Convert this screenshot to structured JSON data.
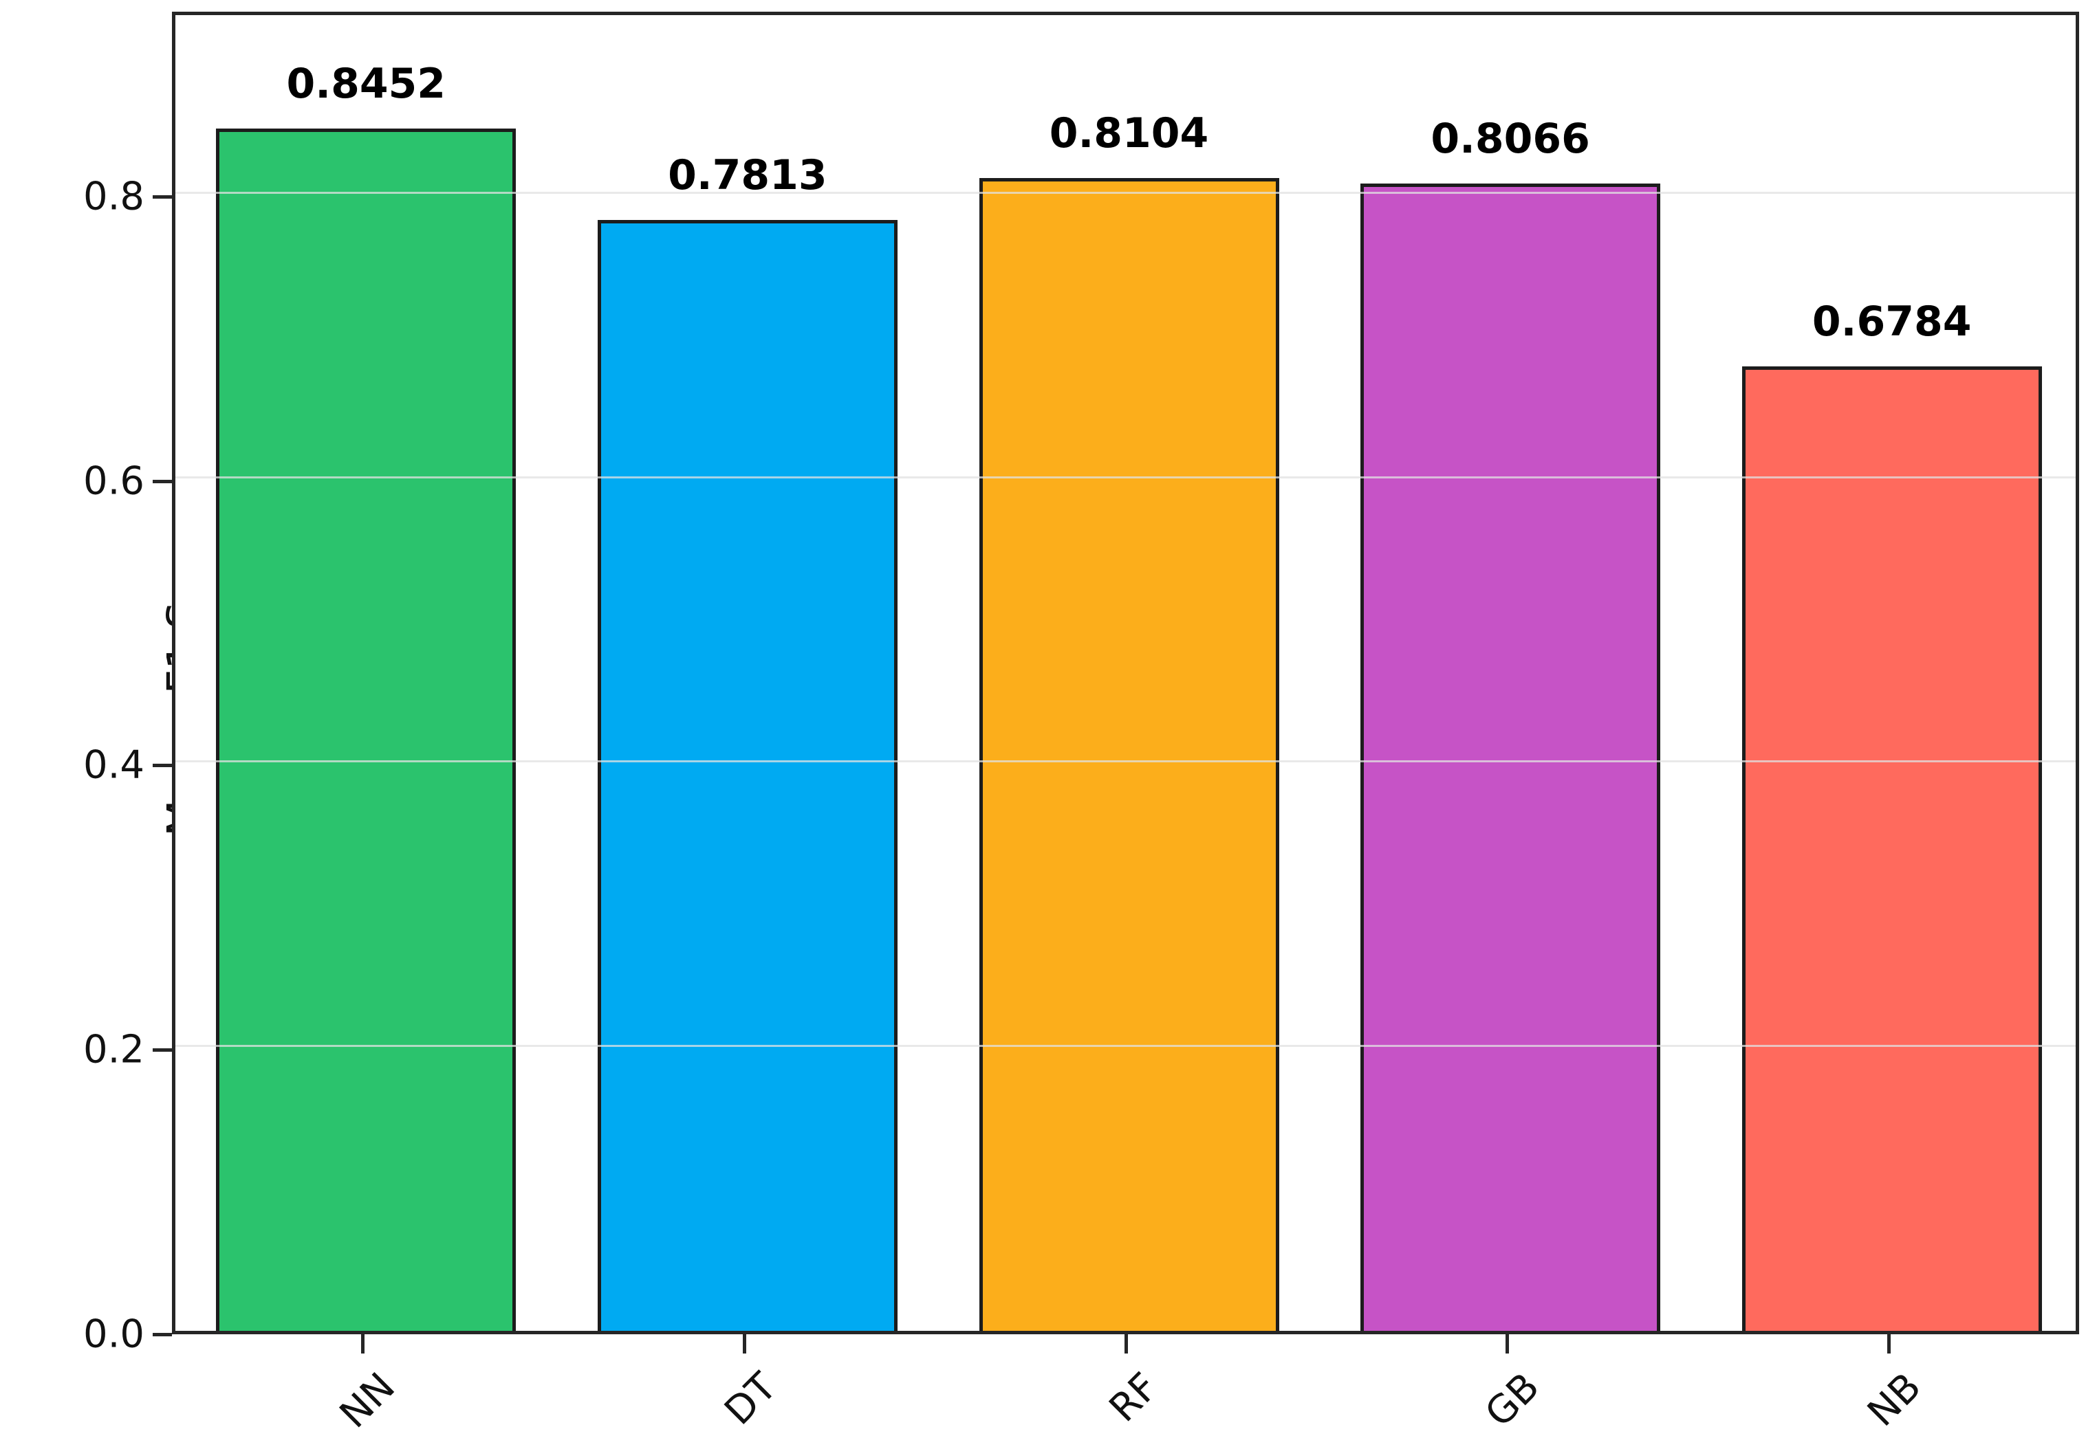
{
  "chart_data": {
    "type": "bar",
    "title": "",
    "xlabel": "",
    "ylabel": "Macro F1 Score",
    "categories": [
      "NN",
      "DT",
      "RF",
      "GB",
      "NB"
    ],
    "values": [
      0.8452,
      0.7813,
      0.8104,
      0.8066,
      0.6784
    ],
    "value_labels": [
      "0.8452",
      "0.7813",
      "0.8104",
      "0.8066",
      "0.6784"
    ],
    "bar_colors": [
      "#2bc36d",
      "#00aaf2",
      "#fcae1b",
      "#c653c6",
      "#ff6a5d"
    ],
    "bar_edge_color": "#1c1c1c",
    "ylim": [
      0,
      0.93
    ],
    "yticks": [
      0.0,
      0.2,
      0.4,
      0.6,
      0.8
    ],
    "ytick_labels": [
      "0.0",
      "0.2",
      "0.4",
      "0.6",
      "0.8"
    ],
    "grid": "horizontal",
    "grid_color": "#e1e1e1",
    "xtick_rotation_deg": 45,
    "legend_position": "none",
    "value_label_style": "bold"
  }
}
